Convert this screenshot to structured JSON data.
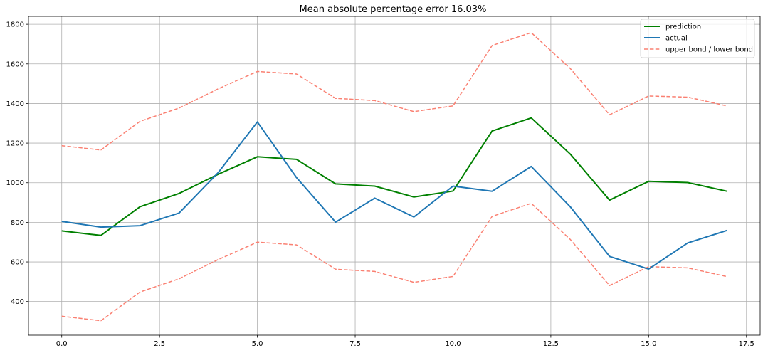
{
  "chart_data": {
    "type": "line",
    "title": "Mean absolute percentage error 16.03%",
    "xlabel": "",
    "ylabel": "",
    "xlim": [
      -0.85,
      17.85
    ],
    "ylim": [
      230,
      1840
    ],
    "xticks": [
      0.0,
      2.5,
      5.0,
      7.5,
      10.0,
      12.5,
      15.0,
      17.5
    ],
    "xtick_labels": [
      "0.0",
      "2.5",
      "5.0",
      "7.5",
      "10.0",
      "12.5",
      "15.0",
      "17.5"
    ],
    "yticks": [
      400,
      600,
      800,
      1000,
      1200,
      1400,
      1600,
      1800
    ],
    "ytick_labels": [
      "400",
      "600",
      "800",
      "1000",
      "1200",
      "1400",
      "1600",
      "1800"
    ],
    "grid": true,
    "legend_position": "top-right",
    "x": [
      0,
      1,
      2,
      3,
      4,
      5,
      6,
      7,
      8,
      9,
      10,
      11,
      12,
      13,
      14,
      15,
      16,
      17
    ],
    "series": [
      {
        "name": "prediction",
        "color": "#008000",
        "style": "solid",
        "values": [
          757,
          734,
          879,
          946,
          1043,
          1131,
          1118,
          994,
          983,
          928,
          958,
          1261,
          1327,
          1144,
          912,
          1007,
          1001,
          957
        ]
      },
      {
        "name": "actual",
        "color": "#1f77b4",
        "style": "solid",
        "values": [
          805,
          776,
          783,
          847,
          1051,
          1307,
          1026,
          801,
          922,
          827,
          983,
          957,
          1082,
          878,
          628,
          564,
          696,
          759
        ]
      },
      {
        "name": "upper bond / lower bond",
        "color": "#fa8072",
        "style": "dashed",
        "values": [
          1187,
          1165,
          1310,
          1377,
          1474,
          1562,
          1549,
          1426,
          1415,
          1359,
          1388,
          1693,
          1758,
          1576,
          1343,
          1438,
          1432,
          1388
        ]
      },
      {
        "name": "",
        "legend": false,
        "color": "#fa8072",
        "style": "dashed",
        "values": [
          326,
          303,
          448,
          515,
          612,
          700,
          686,
          563,
          552,
          497,
          527,
          830,
          896,
          713,
          481,
          576,
          570,
          526
        ]
      }
    ]
  }
}
